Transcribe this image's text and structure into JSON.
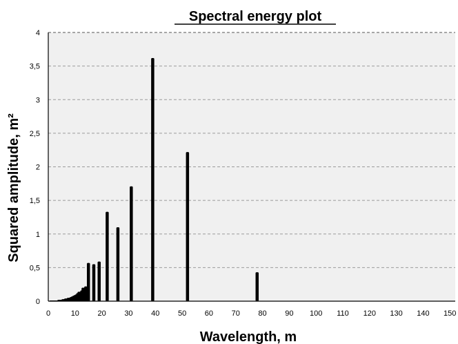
{
  "chart_data": {
    "type": "bar",
    "title": "Spectral energy plot",
    "xlabel": "Wavelength, m",
    "ylabel": "Squared amplitude, m²",
    "xlim": [
      0,
      152
    ],
    "ylim": [
      0,
      4
    ],
    "x_ticks": [
      0,
      10,
      20,
      30,
      40,
      50,
      60,
      70,
      80,
      90,
      100,
      110,
      120,
      130,
      140,
      150
    ],
    "x_tick_labels": [
      "0",
      "10",
      "20",
      "30",
      "40",
      "50",
      "60",
      "70",
      "80",
      "90",
      "100",
      "110",
      "120",
      "130",
      "140",
      "150"
    ],
    "y_ticks": [
      0,
      0.5,
      1,
      1.5,
      2,
      2.5,
      3,
      3.5,
      4
    ],
    "y_tick_labels": [
      "0",
      "0,5",
      "1",
      "1,5",
      "2",
      "2,5",
      "3",
      "3,5",
      "4"
    ],
    "grid": "horizontal dashed",
    "bar_color": "#000000",
    "plot_background": "#f0f0f0",
    "x": [
      1.0,
      1.5,
      2.0,
      2.5,
      3.0,
      3.5,
      4.0,
      4.5,
      5.0,
      5.5,
      6.0,
      6.5,
      7.0,
      7.5,
      8.0,
      8.5,
      9.0,
      9.5,
      10.0,
      10.5,
      11.0,
      11.5,
      12.0,
      12.5,
      13.0,
      13.5,
      14.0,
      15.0,
      17.0,
      19.0,
      22.0,
      26.0,
      31.0,
      39.0,
      52.0,
      78.0
    ],
    "values": [
      0.01,
      0.01,
      0.01,
      0.01,
      0.01,
      0.01,
      0.02,
      0.02,
      0.02,
      0.03,
      0.03,
      0.04,
      0.04,
      0.05,
      0.05,
      0.06,
      0.07,
      0.08,
      0.09,
      0.1,
      0.12,
      0.14,
      0.13,
      0.16,
      0.2,
      0.18,
      0.22,
      0.57,
      0.55,
      0.59,
      1.33,
      1.1,
      1.71,
      3.62,
      2.22,
      0.43
    ]
  }
}
